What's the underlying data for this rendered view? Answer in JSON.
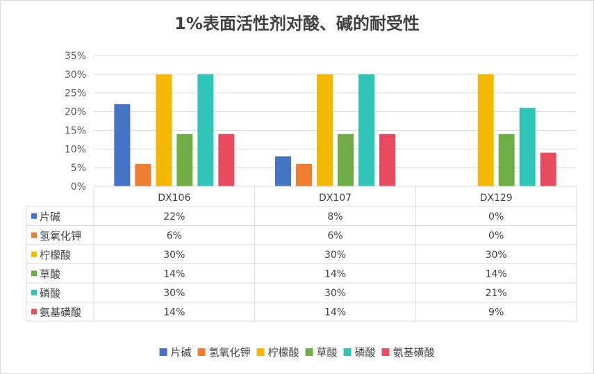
{
  "chart_data": {
    "type": "bar",
    "title": "1%表面活性剂对酸、碱的耐受性",
    "categories": [
      "DX106",
      "DX107",
      "DX129"
    ],
    "series": [
      {
        "name": "片碱",
        "color": "#4472c4",
        "values": [
          22,
          8,
          0
        ],
        "labels": [
          "22%",
          "8%",
          "0%"
        ]
      },
      {
        "name": "氢氧化钾",
        "color": "#ed7d31",
        "values": [
          6,
          6,
          0
        ],
        "labels": [
          "6%",
          "6%",
          "0%"
        ]
      },
      {
        "name": "柠檬酸",
        "color": "#f5b800",
        "values": [
          30,
          30,
          30
        ],
        "labels": [
          "30%",
          "30%",
          "30%"
        ]
      },
      {
        "name": "草酸",
        "color": "#70ad47",
        "values": [
          14,
          14,
          14
        ],
        "labels": [
          "14%",
          "14%",
          "14%"
        ]
      },
      {
        "name": "磷酸",
        "color": "#2ec4b6",
        "values": [
          30,
          30,
          21
        ],
        "labels": [
          "30%",
          "30%",
          "21%"
        ]
      },
      {
        "name": "氨基磺酸",
        "color": "#e84a5f",
        "values": [
          14,
          14,
          9
        ],
        "labels": [
          "14%",
          "14%",
          "9%"
        ]
      }
    ],
    "yticks": [
      "0%",
      "5%",
      "10%",
      "15%",
      "20%",
      "25%",
      "30%",
      "35%"
    ],
    "ylim": [
      0,
      35
    ],
    "grid": true,
    "legend": "bottom",
    "data_table": true
  }
}
